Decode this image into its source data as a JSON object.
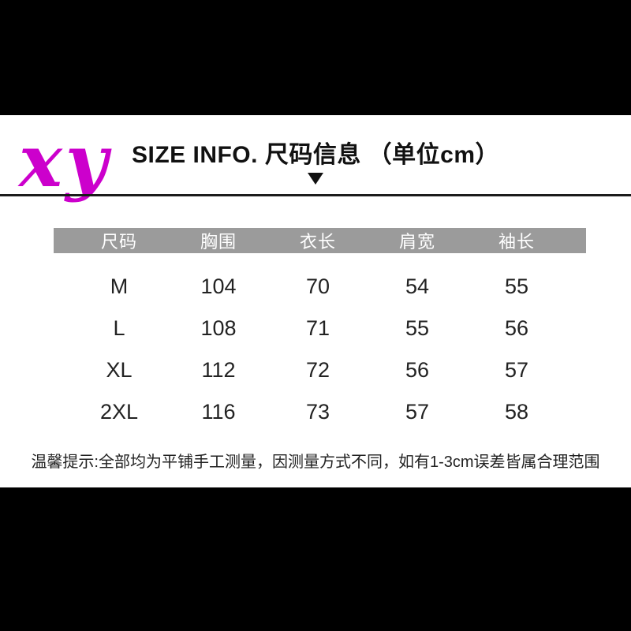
{
  "page": {
    "background": "#ffffff",
    "letterbox_color": "#000000"
  },
  "brand": {
    "logo_text": "xy",
    "logo_color": "#cc00cc"
  },
  "header": {
    "title": "SIZE INFO. 尺码信息 （单位cm）",
    "arrow_icon": "down-triangle"
  },
  "size_table": {
    "header_bg": "#9b9b9b",
    "header_text_color": "#ffffff",
    "columns": [
      "尺码",
      "胸围",
      "衣长",
      "肩宽",
      "袖长"
    ],
    "rows": [
      [
        "M",
        "104",
        "70",
        "54",
        "55"
      ],
      [
        "L",
        "108",
        "71",
        "55",
        "56"
      ],
      [
        "XL",
        "112",
        "72",
        "56",
        "57"
      ],
      [
        "2XL",
        "116",
        "73",
        "57",
        "58"
      ]
    ]
  },
  "note": {
    "text": "温馨提示:全部均为平铺手工测量，因测量方式不同，如有1-3cm误差皆属合理范围"
  }
}
